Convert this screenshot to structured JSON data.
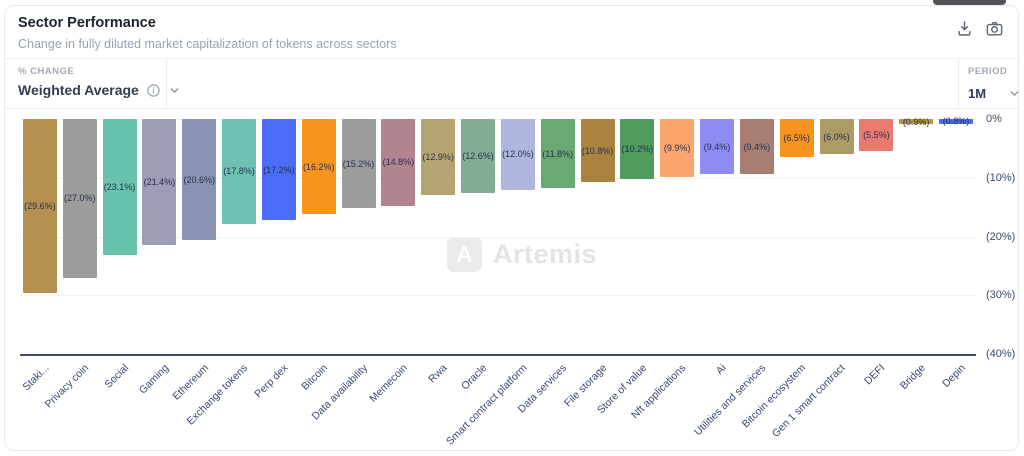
{
  "header": {
    "title": "Sector Performance",
    "subtitle": "Change in fully diluted market capitalization of tokens across sectors",
    "icons": [
      "download-icon",
      "camera-icon"
    ]
  },
  "controls": {
    "metric_label": "% CHANGE",
    "metric_value": "Weighted Average",
    "period_label": "PERIOD",
    "period_value": "1M"
  },
  "watermark": {
    "logo_letter": "A",
    "text": "Artemis"
  },
  "chart_data": {
    "type": "bar",
    "title": "Sector Performance",
    "xlabel": "",
    "ylabel": "% Change",
    "ylim": [
      -40,
      0
    ],
    "grid": true,
    "legend": "none",
    "categories": [
      "Staki...",
      "Privacy coin",
      "Social",
      "Gaming",
      "Ethereum",
      "Exchange tokens",
      "Perp dex",
      "Bitcoin",
      "Data availability",
      "Memecoin",
      "Rwa",
      "Oracle",
      "Smart contract platform",
      "Data services",
      "File storage",
      "Store of value",
      "Nft applications",
      "Ai",
      "Utilities and services",
      "Bitcoin ecosystem",
      "Gen 1 smart contract",
      "DEFI",
      "Bridge",
      "Depin"
    ],
    "values": [
      -29.6,
      -27.0,
      -23.1,
      -21.4,
      -20.6,
      -17.8,
      -17.2,
      -16.2,
      -15.2,
      -14.8,
      -12.9,
      -12.6,
      -12.0,
      -11.8,
      -10.8,
      -10.2,
      -9.9,
      -9.4,
      -9.4,
      -6.5,
      -6.0,
      -5.5,
      -0.9,
      -0.8
    ],
    "bar_labels": [
      "(29.6%)",
      "(27.0%)",
      "(23.1%)",
      "(21.4%)",
      "(20.6%)",
      "(17.8%)",
      "(17.2%)",
      "(16.2%)",
      "(15.2%)",
      "(14.8%)",
      "(12.9%)",
      "(12.6%)",
      "(12.0%)",
      "(11.8%)",
      "(10.8%)",
      "(10.2%)",
      "(9.9%)",
      "(9.4%)",
      "(9.4%)",
      "(6.5%)",
      "(6.0%)",
      "(5.5%)",
      "(0.9%)",
      "(0.8%)"
    ],
    "colors": [
      "#b5914f",
      "#9c9c9c",
      "#68c3ad",
      "#9e9db8",
      "#8a93b4",
      "#6ec1b0",
      "#4a6cf7",
      "#f8941e",
      "#9c9c9c",
      "#b28490",
      "#b5a471",
      "#83ab95",
      "#b1b6df",
      "#68a973",
      "#aa8340",
      "#4f9c5e",
      "#fca56c",
      "#8d8cf2",
      "#a87e72",
      "#f8941e",
      "#ac9c63",
      "#ea7a70",
      "#b8923f",
      "#4a6cf7"
    ],
    "y_ticks": [
      {
        "value": 0,
        "label": "0%"
      },
      {
        "value": -10,
        "label": "(10%)"
      },
      {
        "value": -20,
        "label": "(20%)"
      },
      {
        "value": -30,
        "label": "(30%)"
      },
      {
        "value": -40,
        "label": "(40%)"
      }
    ]
  }
}
